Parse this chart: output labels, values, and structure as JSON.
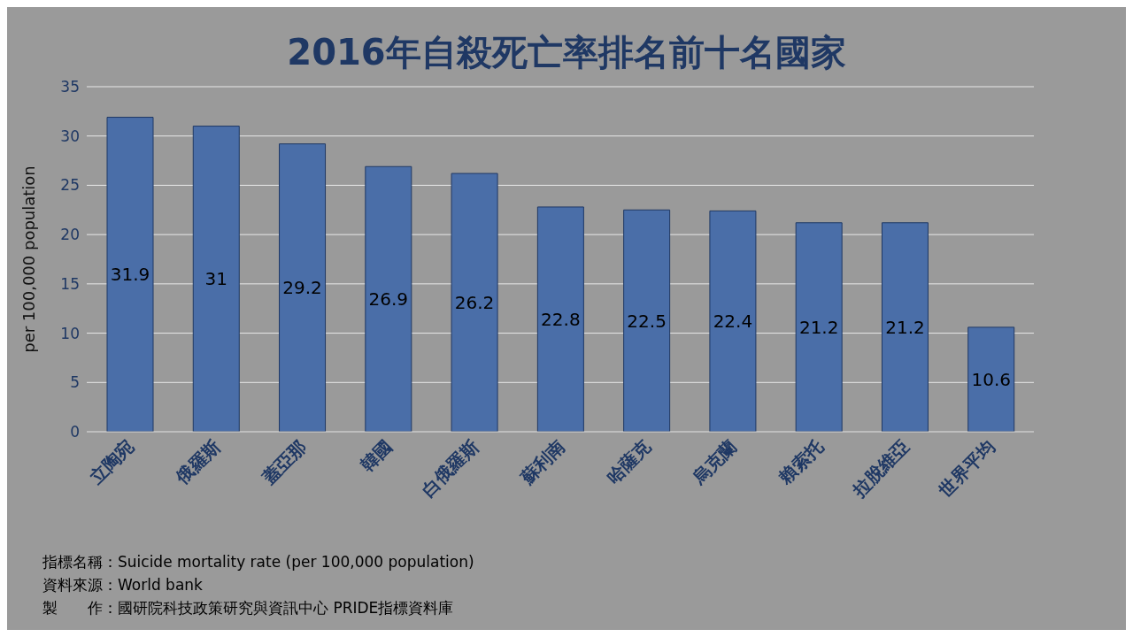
{
  "chart_data": {
    "type": "bar",
    "title": "2016年自殺死亡率排名前十名國家",
    "ylabel": "per 100,000 population",
    "categories": [
      "立陶宛",
      "俄羅斯",
      "蓋亞那",
      "韓國",
      "白俄羅斯",
      "蘇利南",
      "哈薩克",
      "烏克蘭",
      "賴索托",
      "拉脫維亞",
      "世界平均"
    ],
    "values": [
      31.9,
      31,
      29.2,
      26.9,
      26.2,
      22.8,
      22.5,
      22.4,
      21.2,
      21.2,
      10.6
    ],
    "color": "#4a6ea8",
    "ylim": [
      0,
      35
    ],
    "yticks": [
      0,
      5,
      10,
      15,
      20,
      25,
      30,
      35
    ],
    "grid": "y",
    "data_labels": true,
    "legend": false,
    "annotations": [
      "指標名稱：Suicide mortality rate (per 100,000 population)",
      "資料來源：World bank",
      "製　　作：國研院科技政策研究與資訊中心  PRIDE指標資料庫"
    ]
  }
}
